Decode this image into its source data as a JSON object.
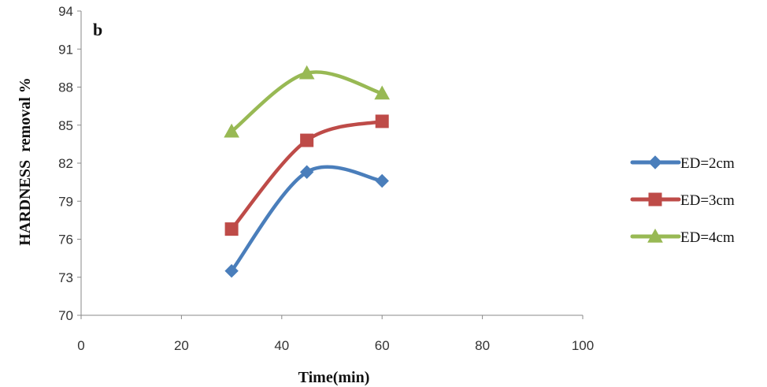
{
  "chart_data": {
    "type": "line",
    "panel_label": "b",
    "xlabel": "Time(min)",
    "ylabel": "HARDNESS  removal %",
    "xlim": [
      0,
      100
    ],
    "ylim": [
      70,
      94
    ],
    "xticks": [
      0,
      20,
      40,
      60,
      80,
      100
    ],
    "yticks": [
      70,
      73,
      76,
      79,
      82,
      85,
      88,
      91,
      94
    ],
    "x": [
      30,
      45,
      60
    ],
    "series": [
      {
        "name": "ED=2cm",
        "values": [
          73.5,
          81.3,
          80.6
        ],
        "color": "#4a7ebb",
        "marker": "diamond"
      },
      {
        "name": "ED=3cm",
        "values": [
          76.8,
          83.8,
          85.3
        ],
        "color": "#be4b48",
        "marker": "square"
      },
      {
        "name": "ED=4cm",
        "values": [
          84.5,
          89.1,
          87.5
        ],
        "color": "#98b954",
        "marker": "triangle"
      }
    ],
    "legend_position": "right",
    "grid": false
  }
}
